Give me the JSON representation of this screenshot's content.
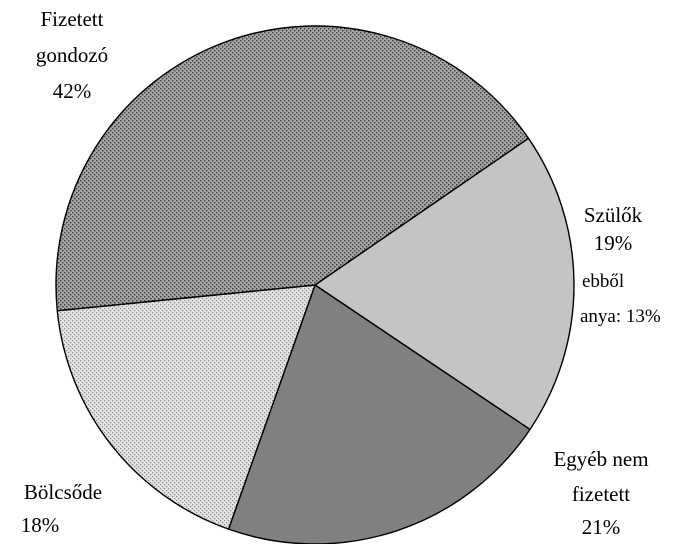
{
  "chart_data": {
    "type": "pie",
    "slices": [
      {
        "label": "Fizetett gondozó",
        "value": 42,
        "value_text": "42%",
        "color": "#8f8f8f",
        "pattern": "dotted"
      },
      {
        "label": "Szülők",
        "value": 19,
        "value_text": "19%",
        "color": "#c4c4c4",
        "pattern": "solid",
        "note": "ebből anya: 13%"
      },
      {
        "label": "Egyéb nem fizetett",
        "value": 21,
        "value_text": "21%",
        "color": "#808080",
        "pattern": "solid"
      },
      {
        "label": "Bölcsőde",
        "value": 18,
        "value_text": "18%",
        "color": "#d6d6d6",
        "pattern": "dotted"
      }
    ],
    "labels": {
      "fizetett_line1": "Fizetett",
      "fizetett_line2": "gondozó",
      "fizetett_pct": "42%",
      "szulok_line1": "Szülők",
      "szulok_pct": "19%",
      "szulok_note1": "ebből",
      "szulok_note2": "anya: 13%",
      "egyeb_line1": "Egyéb nem",
      "egyeb_line2": "fizetett",
      "egyeb_pct": "21%",
      "bolcsode_line1": "Bölcsőde",
      "bolcsode_pct": "18%"
    },
    "legend": "none",
    "outline_color": "#000000"
  }
}
